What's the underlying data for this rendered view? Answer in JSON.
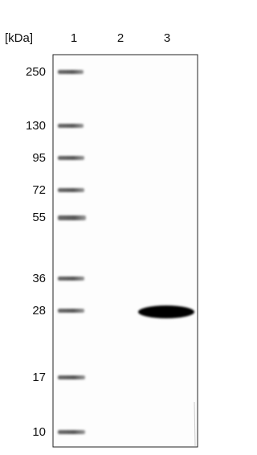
{
  "header": {
    "unit_label": "[kDa]",
    "lanes": [
      "1",
      "2",
      "3"
    ]
  },
  "markers": [
    "250",
    "130",
    "95",
    "72",
    "55",
    "36",
    "28",
    "17",
    "10"
  ]
}
